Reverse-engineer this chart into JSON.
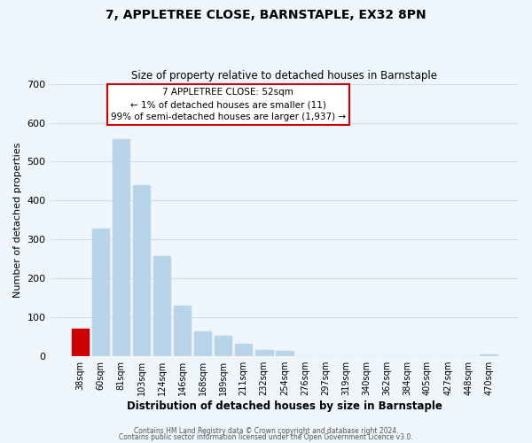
{
  "title": "7, APPLETREE CLOSE, BARNSTAPLE, EX32 8PN",
  "subtitle": "Size of property relative to detached houses in Barnstaple",
  "xlabel": "Distribution of detached houses by size in Barnstaple",
  "ylabel": "Number of detached properties",
  "bar_labels": [
    "38sqm",
    "60sqm",
    "81sqm",
    "103sqm",
    "124sqm",
    "146sqm",
    "168sqm",
    "189sqm",
    "211sqm",
    "232sqm",
    "254sqm",
    "276sqm",
    "297sqm",
    "319sqm",
    "340sqm",
    "362sqm",
    "384sqm",
    "405sqm",
    "427sqm",
    "448sqm",
    "470sqm"
  ],
  "bar_values": [
    72,
    328,
    557,
    440,
    257,
    130,
    65,
    53,
    32,
    17,
    14,
    0,
    0,
    0,
    0,
    0,
    0,
    0,
    0,
    0,
    5
  ],
  "bar_color": "#b8d4e8",
  "highlight_bar_index": 0,
  "highlight_bar_color": "#cc0000",
  "ylim": [
    0,
    700
  ],
  "yticks": [
    0,
    100,
    200,
    300,
    400,
    500,
    600,
    700
  ],
  "annotation_title": "7 APPLETREE CLOSE: 52sqm",
  "annotation_line1": "← 1% of detached houses are smaller (11)",
  "annotation_line2": "99% of semi-detached houses are larger (1,937) →",
  "footer_line1": "Contains HM Land Registry data © Crown copyright and database right 2024.",
  "footer_line2": "Contains public sector information licensed under the Open Government Licence v3.0.",
  "grid_color": "#ccdde8",
  "background_color": "#eef5fb"
}
